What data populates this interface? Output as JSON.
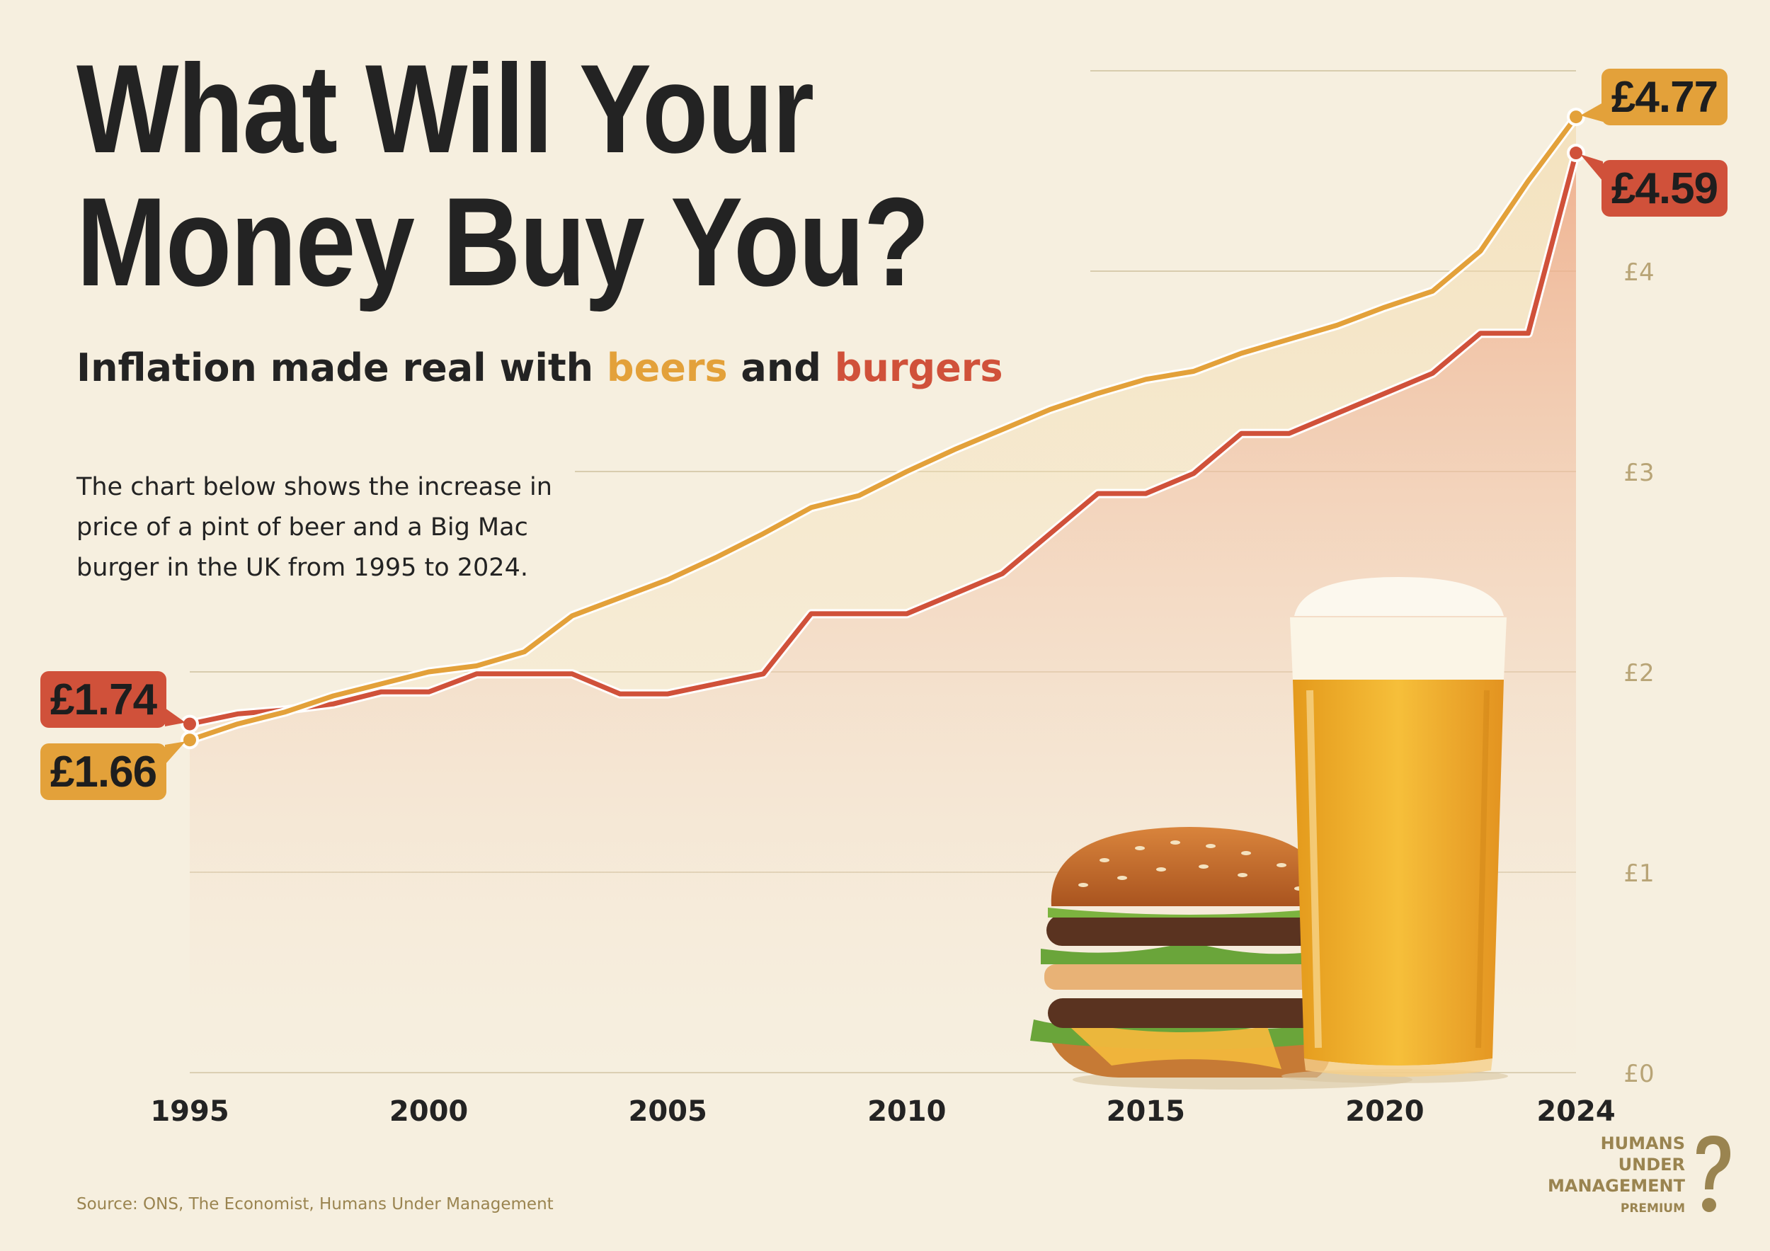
{
  "header": {
    "title_line1": "What Will Your",
    "title_line2": "Money Buy You?",
    "subtitle_pre": "Inflation made real with ",
    "subtitle_beers": "beers",
    "subtitle_mid": " and ",
    "subtitle_burgers": "burgers",
    "description": "The chart below shows the increase in price of a pint of beer and a Big Mac burger in the UK from 1995 to 2024."
  },
  "footer": {
    "source": "Source: ONS, The Economist, Humans Under Management"
  },
  "brand": {
    "line1": "HUMANS",
    "line2": "UNDER",
    "line3": "MANAGEMENT",
    "premium": "PREMIUM",
    "icon": "question-mark-head-icon"
  },
  "illustrations": [
    "burger-illustration",
    "beer-glass-illustration"
  ],
  "colors": {
    "background": "#f6efdf",
    "beer": "#e3a13a",
    "burger": "#d0513a",
    "text": "#232323",
    "axis_text": "#b8a476",
    "brand": "#9a8450"
  },
  "chart_data": {
    "type": "line",
    "x": [
      1995,
      1996,
      1997,
      1998,
      1999,
      2000,
      2001,
      2002,
      2003,
      2004,
      2005,
      2006,
      2007,
      2008,
      2009,
      2010,
      2011,
      2012,
      2013,
      2014,
      2015,
      2016,
      2017,
      2018,
      2019,
      2020,
      2021,
      2022,
      2023,
      2024
    ],
    "xticks": [
      "1995",
      "2000",
      "2005",
      "2010",
      "2015",
      "2020",
      "2024"
    ],
    "yticks": [
      "£0",
      "£1",
      "£2",
      "£3",
      "£4"
    ],
    "ylim": [
      0,
      5
    ],
    "series": [
      {
        "key": "beer",
        "color": "#e3a13a",
        "values": [
          1.66,
          1.74,
          1.8,
          1.88,
          1.94,
          2.0,
          2.03,
          2.1,
          2.28,
          2.37,
          2.46,
          2.57,
          2.69,
          2.82,
          2.88,
          3.0,
          3.11,
          3.21,
          3.31,
          3.39,
          3.46,
          3.5,
          3.59,
          3.66,
          3.73,
          3.82,
          3.9,
          4.1,
          4.45,
          4.77
        ],
        "start_label": "£1.66",
        "end_label": "£4.77"
      },
      {
        "key": "burger",
        "color": "#d0513a",
        "values": [
          1.74,
          1.79,
          1.81,
          1.84,
          1.9,
          1.9,
          1.99,
          1.99,
          1.99,
          1.89,
          1.89,
          1.94,
          1.99,
          2.29,
          2.29,
          2.29,
          2.39,
          2.49,
          2.69,
          2.89,
          2.89,
          2.99,
          3.19,
          3.19,
          3.29,
          3.39,
          3.49,
          3.69,
          3.69,
          4.59
        ],
        "start_label": "£1.74",
        "end_label": "£4.59"
      }
    ]
  }
}
